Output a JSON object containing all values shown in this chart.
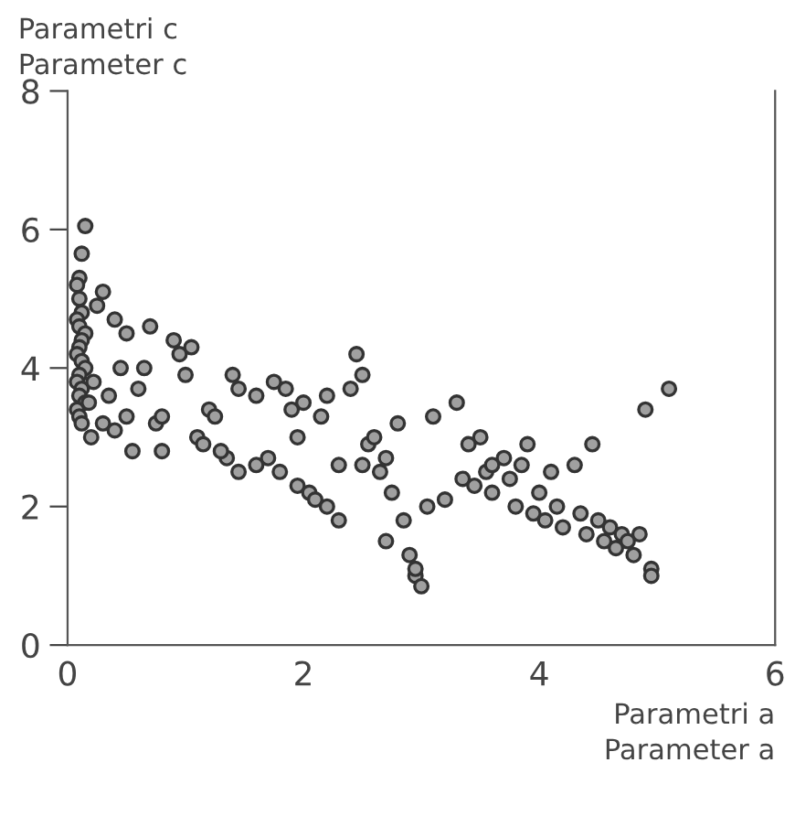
{
  "chart_data": {
    "type": "scatter",
    "xlabel": "Parametri a\nParameter a",
    "ylabel": "Parametri c\nParameter c",
    "xlim": [
      0,
      6
    ],
    "ylim": [
      0,
      8
    ],
    "xticks": [
      0,
      2,
      4,
      6
    ],
    "yticks": [
      0,
      2,
      4,
      6,
      8
    ],
    "grid": false,
    "marker": "circle",
    "series": [
      {
        "color": "#a0a0a0",
        "x": [
          0.15,
          0.12,
          0.1,
          0.08,
          0.1,
          0.12,
          0.08,
          0.1,
          0.15,
          0.12,
          0.1,
          0.08,
          0.12,
          0.15,
          0.1,
          0.08,
          0.12,
          0.1,
          0.15,
          0.08,
          0.1,
          0.12,
          0.2,
          0.18,
          0.22,
          0.3,
          0.25,
          0.4,
          0.45,
          0.35,
          0.5,
          0.3,
          0.5,
          0.4,
          0.55,
          0.6,
          0.7,
          0.65,
          0.75,
          0.8,
          0.8,
          0.9,
          0.95,
          1.0,
          1.05,
          1.1,
          1.15,
          1.2,
          1.25,
          1.35,
          1.4,
          1.45,
          1.45,
          1.6,
          1.6,
          1.7,
          1.75,
          1.8,
          1.85,
          1.9,
          1.95,
          1.95,
          2.0,
          2.05,
          2.1,
          2.15,
          2.2,
          2.3,
          2.4,
          2.45,
          2.5,
          2.5,
          2.55,
          2.6,
          2.65,
          2.7,
          2.7,
          2.75,
          2.8,
          2.85,
          2.9,
          2.95,
          3.0,
          2.95,
          3.05,
          3.1,
          3.2,
          3.3,
          3.35,
          3.4,
          3.45,
          3.5,
          3.55,
          3.6,
          3.7,
          3.75,
          3.8,
          3.85,
          3.9,
          3.95,
          4.0,
          4.05,
          4.1,
          4.15,
          4.2,
          4.3,
          4.35,
          4.4,
          4.45,
          4.5,
          4.55,
          4.6,
          4.65,
          4.7,
          4.75,
          4.8,
          4.85,
          4.9,
          4.95,
          4.95,
          5.1,
          3.6,
          2.3,
          2.2,
          1.3
        ],
        "values": [
          6.05,
          5.65,
          5.3,
          5.2,
          5.0,
          4.8,
          4.7,
          4.6,
          4.5,
          4.4,
          4.3,
          4.2,
          4.1,
          4.0,
          3.9,
          3.8,
          3.7,
          3.6,
          3.5,
          3.4,
          3.3,
          3.2,
          3.0,
          3.5,
          3.8,
          5.1,
          4.9,
          4.7,
          4.0,
          3.6,
          4.5,
          3.2,
          3.3,
          3.1,
          2.8,
          3.7,
          4.6,
          4.0,
          3.2,
          3.3,
          2.8,
          4.4,
          4.2,
          3.9,
          4.3,
          3.0,
          2.9,
          3.4,
          3.3,
          2.7,
          3.9,
          3.7,
          2.5,
          3.6,
          2.6,
          2.7,
          3.8,
          2.5,
          3.7,
          3.4,
          2.3,
          3.0,
          3.5,
          2.2,
          2.1,
          3.3,
          2.0,
          1.8,
          3.7,
          4.2,
          3.9,
          2.6,
          2.9,
          3.0,
          2.5,
          2.7,
          1.5,
          2.2,
          3.2,
          1.8,
          1.3,
          1.0,
          0.85,
          1.1,
          2.0,
          3.3,
          2.1,
          3.5,
          2.4,
          2.9,
          2.3,
          3.0,
          2.5,
          2.2,
          2.7,
          2.4,
          2.0,
          2.6,
          2.9,
          1.9,
          2.2,
          1.8,
          2.5,
          2.0,
          1.7,
          2.6,
          1.9,
          1.6,
          2.9,
          1.8,
          1.5,
          1.7,
          1.4,
          1.6,
          1.5,
          1.3,
          1.6,
          3.4,
          1.1,
          1.0,
          3.7,
          2.6,
          2.6,
          3.6,
          2.8
        ]
      }
    ]
  }
}
